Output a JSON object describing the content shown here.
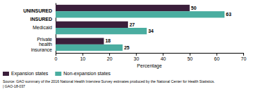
{
  "chart_data": {
    "type": "bar",
    "orientation": "horizontal",
    "categories": [
      "UNINSURED",
      "Medicaid",
      "Private health insurance"
    ],
    "annotations": [
      "INSURED"
    ],
    "series": [
      {
        "name": "Expansion states",
        "color": "#3b1f3b",
        "values": [
          50,
          27,
          18
        ]
      },
      {
        "name": "Non-expansion states",
        "color": "#4aada0",
        "values": [
          63,
          34,
          25
        ]
      }
    ],
    "xlabel": "Percentage",
    "xlim": [
      0,
      70
    ],
    "xticks": [
      0,
      10,
      20,
      30,
      40,
      50,
      60,
      70
    ],
    "grid": false,
    "legend": "bottom",
    "data_labels": true,
    "source": "Source: GAO summary of the 2016 National Health Interview Survey estimates produced by the National Center for Health Statistics.\n| GAO-18-037"
  }
}
